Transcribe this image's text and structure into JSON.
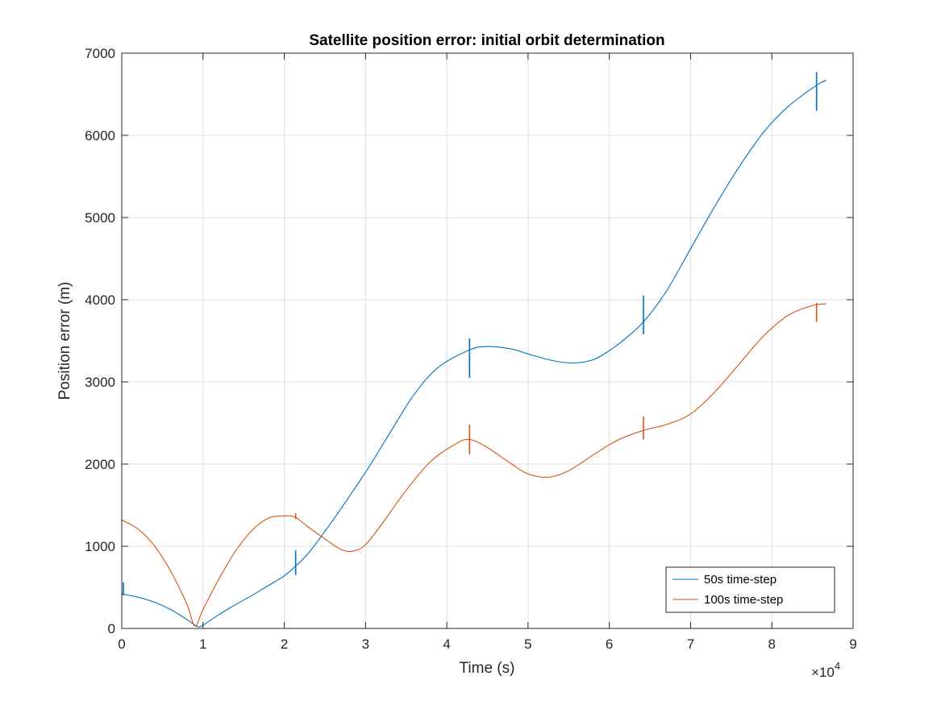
{
  "chart_data": {
    "type": "line",
    "title": "Satellite position error: initial orbit determination",
    "xlabel": "Time (s)",
    "ylabel": "Position error (m)",
    "xlim": [
      0,
      9
    ],
    "ylim": [
      0,
      7000
    ],
    "x_multiplier_base": "×10",
    "x_multiplier_exp": "4",
    "x_ticks": [
      0,
      1,
      2,
      3,
      4,
      5,
      6,
      7,
      8,
      9
    ],
    "x_tick_labels": [
      "0",
      "1",
      "2",
      "3",
      "4",
      "5",
      "6",
      "7",
      "8",
      "9"
    ],
    "y_ticks": [
      0,
      1000,
      2000,
      3000,
      4000,
      5000,
      6000,
      7000
    ],
    "y_tick_labels": [
      "0",
      "1000",
      "2000",
      "3000",
      "4000",
      "5000",
      "6000",
      "7000"
    ],
    "grid": true,
    "legend_position": "bottom-right",
    "series": [
      {
        "name": "50s time-step",
        "color": "#0072BD",
        "x": [
          0,
          0.2,
          0.4,
          0.6,
          0.8,
          0.9,
          0.95,
          1.0,
          1.2,
          1.4,
          1.6,
          1.8,
          2.0,
          2.14,
          2.3,
          2.6,
          3.0,
          3.3,
          3.6,
          3.9,
          4.28,
          4.5,
          4.8,
          5.0,
          5.3,
          5.55,
          5.8,
          6.0,
          6.2,
          6.42,
          6.7,
          7.0,
          7.3,
          7.6,
          7.9,
          8.2,
          8.55,
          8.67
        ],
        "y": [
          420,
          380,
          320,
          230,
          110,
          40,
          20,
          40,
          170,
          290,
          400,
          520,
          640,
          760,
          920,
          1320,
          1900,
          2380,
          2850,
          3180,
          3390,
          3430,
          3400,
          3340,
          3260,
          3230,
          3270,
          3380,
          3530,
          3730,
          4100,
          4620,
          5140,
          5620,
          6040,
          6350,
          6610,
          6670
        ],
        "spikes": [
          {
            "x": 0.02,
            "low": 400,
            "high": 560
          },
          {
            "x": 2.14,
            "low": 650,
            "high": 950
          },
          {
            "x": 4.28,
            "low": 3050,
            "high": 3530
          },
          {
            "x": 6.42,
            "low": 3580,
            "high": 4050
          },
          {
            "x": 8.55,
            "low": 6300,
            "high": 6770
          }
        ]
      },
      {
        "name": "100s time-step",
        "color": "#D95319",
        "x": [
          0,
          0.2,
          0.4,
          0.6,
          0.8,
          0.9,
          1.0,
          1.2,
          1.4,
          1.6,
          1.8,
          2.0,
          2.14,
          2.3,
          2.5,
          2.7,
          2.85,
          3.0,
          3.2,
          3.5,
          3.8,
          4.1,
          4.28,
          4.5,
          4.8,
          5.0,
          5.25,
          5.5,
          5.8,
          6.1,
          6.42,
          6.7,
          7.0,
          7.3,
          7.6,
          7.9,
          8.2,
          8.5,
          8.67
        ],
        "y": [
          1320,
          1210,
          1010,
          700,
          300,
          30,
          230,
          610,
          940,
          1190,
          1340,
          1370,
          1350,
          1230,
          1090,
          960,
          940,
          1020,
          1270,
          1680,
          2030,
          2240,
          2300,
          2200,
          2000,
          1880,
          1840,
          1920,
          2110,
          2290,
          2410,
          2480,
          2610,
          2880,
          3220,
          3560,
          3810,
          3930,
          3950
        ],
        "spikes": [
          {
            "x": 2.14,
            "low": 1330,
            "high": 1400
          },
          {
            "x": 4.28,
            "low": 2120,
            "high": 2480
          },
          {
            "x": 6.42,
            "low": 2300,
            "high": 2580
          },
          {
            "x": 8.55,
            "low": 3730,
            "high": 3960
          }
        ]
      }
    ]
  }
}
